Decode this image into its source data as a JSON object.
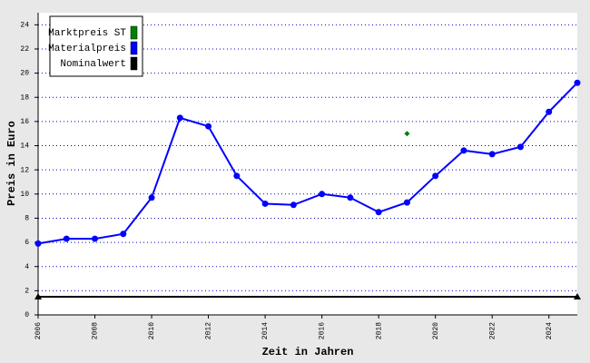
{
  "chart_data": {
    "type": "line",
    "x_label": "Zeit in Jahren",
    "y_label": "Preis in Euro",
    "xlim": [
      2006,
      2025
    ],
    "xticks": [
      2006,
      2008,
      2010,
      2012,
      2014,
      2016,
      2018,
      2020,
      2022,
      2024
    ],
    "ylim": [
      0,
      25
    ],
    "yticks": [
      0,
      2,
      4,
      6,
      8,
      10,
      12,
      14,
      16,
      18,
      20,
      22,
      24
    ],
    "grid": true,
    "legend": "upper left",
    "series": [
      {
        "name": "Marktpreis ST",
        "color": "#008000",
        "marker": "diamond",
        "x": [
          2019
        ],
        "values": [
          15.0
        ]
      },
      {
        "name": "Materialpreis",
        "color": "#0000ff",
        "marker": "circle",
        "x": [
          2006,
          2007,
          2008,
          2009,
          2010,
          2011,
          2012,
          2013,
          2014,
          2015,
          2016,
          2017,
          2018,
          2019,
          2020,
          2021,
          2022,
          2023,
          2024,
          2025
        ],
        "values": [
          5.9,
          6.3,
          6.3,
          6.7,
          9.7,
          16.3,
          15.6,
          11.5,
          9.2,
          9.1,
          10.0,
          9.7,
          8.5,
          9.3,
          11.5,
          13.6,
          13.3,
          13.9,
          16.8,
          19.2
        ]
      },
      {
        "name": "Nominalwert",
        "color": "#000000",
        "marker": "triangle",
        "x": [
          2006,
          2025
        ],
        "values": [
          1.5,
          1.5
        ]
      }
    ]
  }
}
